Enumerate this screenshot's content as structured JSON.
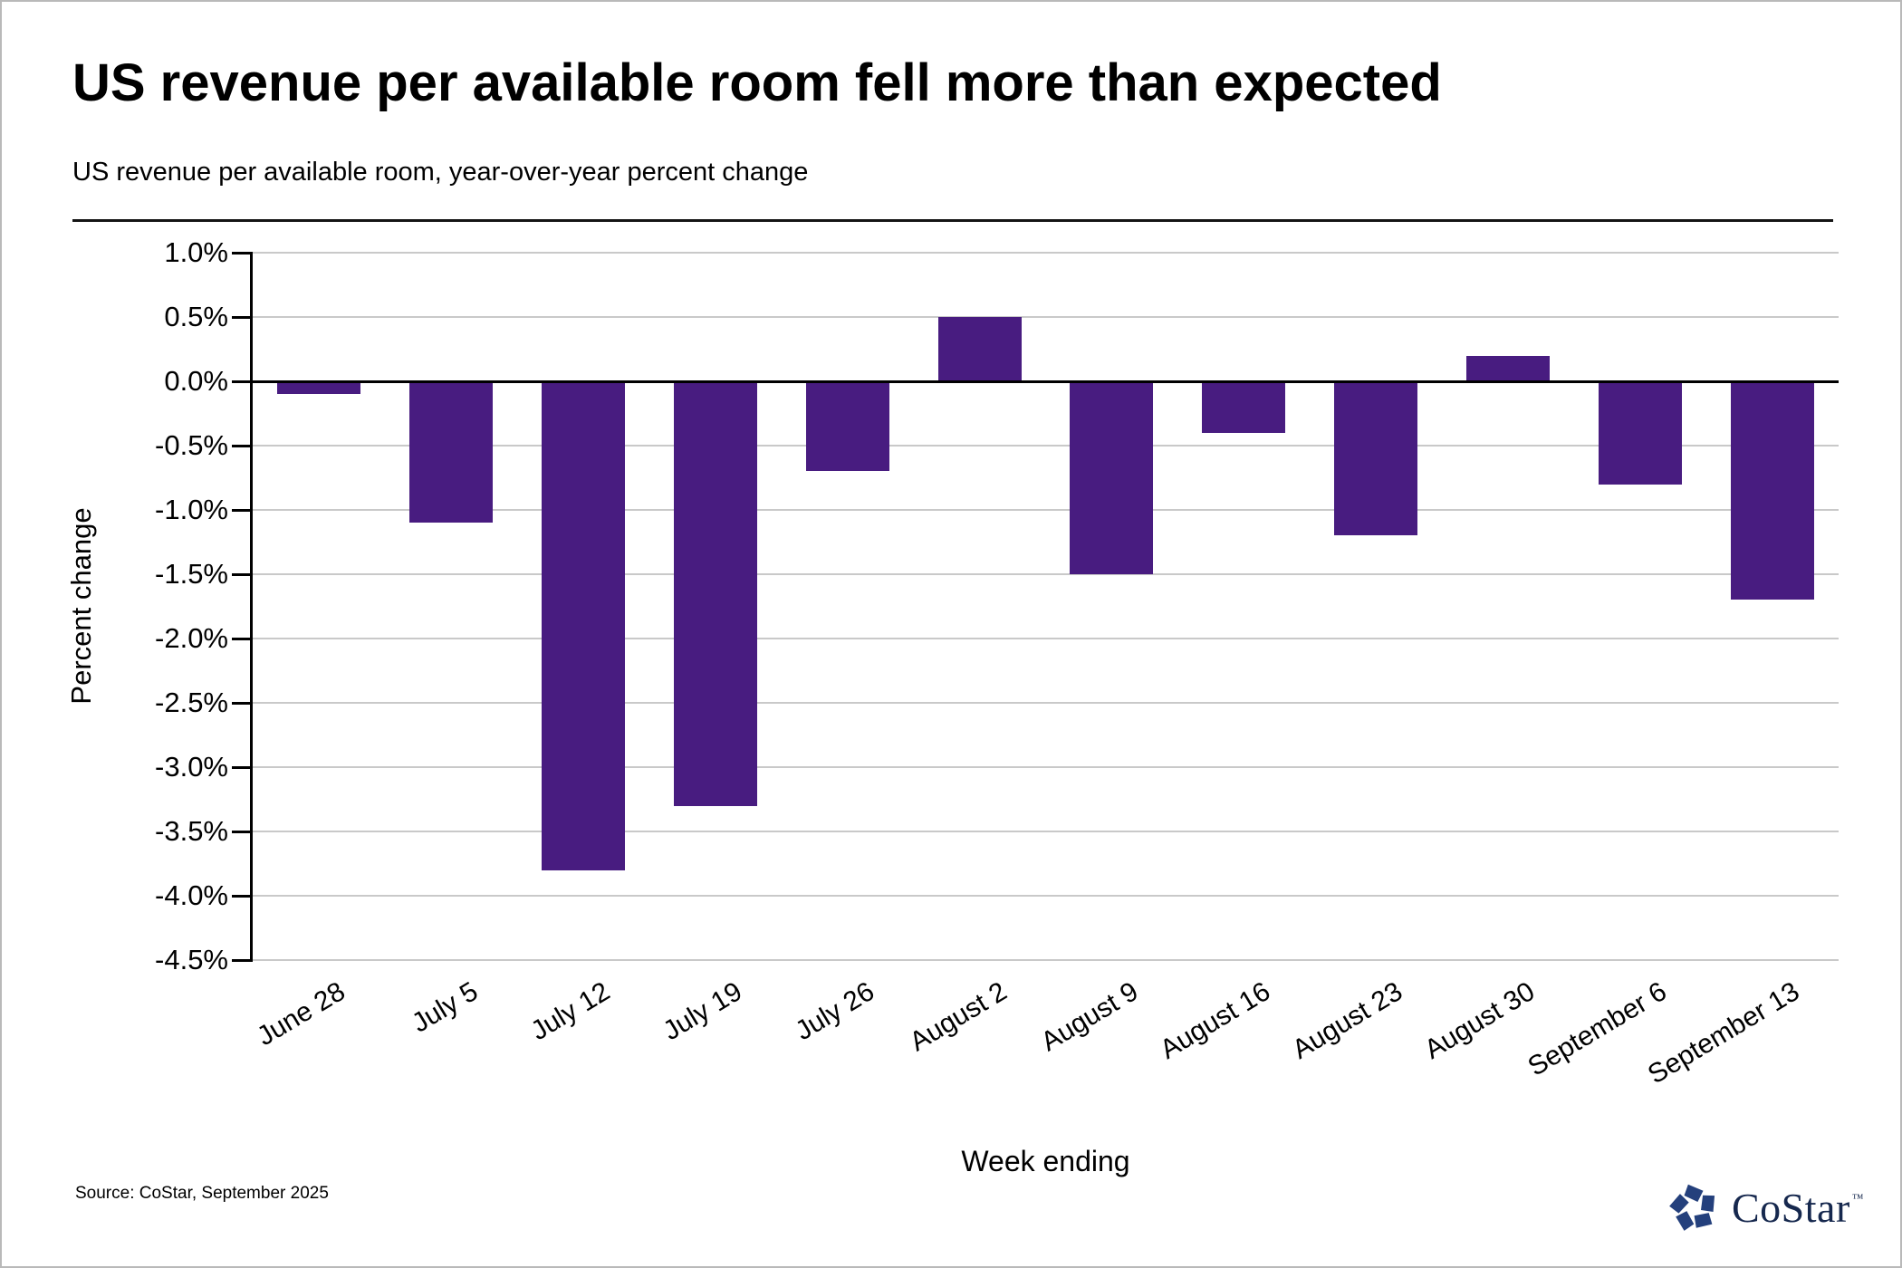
{
  "header": {
    "title": "US revenue per available room fell more than expected",
    "subtitle": "US revenue per available room, year-over-year percent change"
  },
  "footer": {
    "source": "Source: CoStar, September 2025",
    "logo_text": "CoStar",
    "logo_tm": "™"
  },
  "colors": {
    "bar": "#481c80",
    "gridline": "#c9c9c9",
    "zero_line": "#000000",
    "logo_navy": "#24407c"
  },
  "chart_data": {
    "type": "bar",
    "title": "US revenue per available room fell more than expected",
    "subtitle": "US revenue per available room, year-over-year percent change",
    "categories": [
      "June 28",
      "July 5",
      "July 12",
      "July 19",
      "July 26",
      "August 2",
      "August 9",
      "August 16",
      "August 23",
      "August 30",
      "September 6",
      "September 13"
    ],
    "values": [
      -0.1,
      -1.1,
      -3.8,
      -3.3,
      -0.7,
      0.5,
      -1.5,
      -0.4,
      -1.2,
      0.2,
      -0.8,
      -1.7
    ],
    "xlabel": "Week ending",
    "ylabel": "Percent change",
    "ylim": [
      -4.5,
      1.0
    ],
    "ytick_values": [
      1.0,
      0.5,
      0.0,
      -0.5,
      -1.0,
      -1.5,
      -2.0,
      -2.5,
      -3.0,
      -3.5,
      -4.0,
      -4.5
    ],
    "ytick_labels": [
      "1.0%",
      "0.5%",
      "0.0%",
      "-0.5%",
      "-1.0%",
      "-1.5%",
      "-2.0%",
      "-2.5%",
      "-3.0%",
      "-3.5%",
      "-4.0%",
      "-4.5%"
    ],
    "grid": true,
    "legend": "none",
    "bar_color": "#481c80"
  }
}
